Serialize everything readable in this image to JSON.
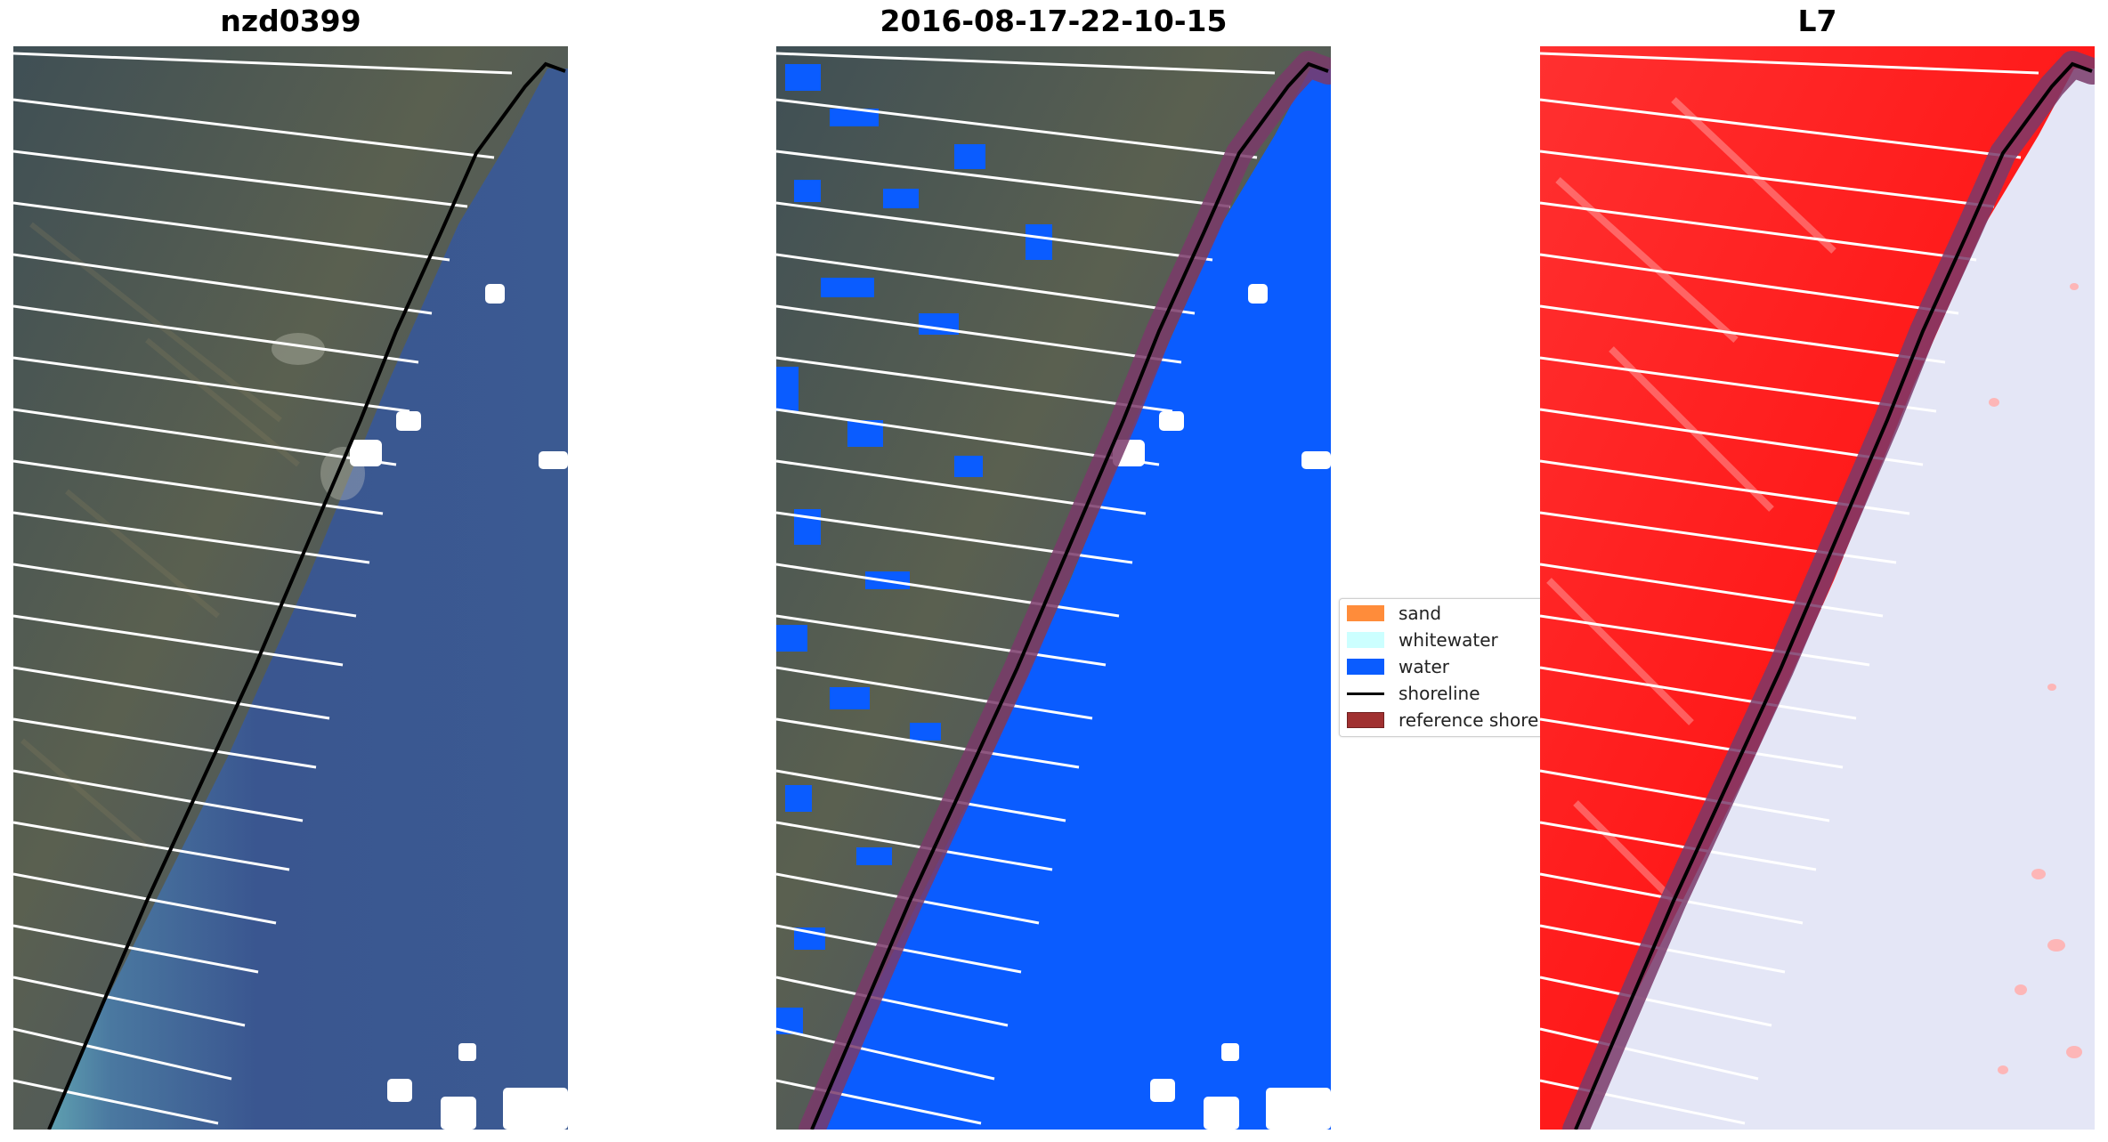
{
  "panels": [
    {
      "title": "nzd0399"
    },
    {
      "title": "2016-08-17-22-10-15"
    },
    {
      "title": "L7"
    }
  ],
  "legend": {
    "items": [
      {
        "label": "sand",
        "color": "#ff8c3a",
        "kind": "patch"
      },
      {
        "label": "whitewater",
        "color": "#ccffff",
        "kind": "patch"
      },
      {
        "label": "water",
        "color": "#0a5cff",
        "kind": "patch"
      },
      {
        "label": "shoreline",
        "color": "#000000",
        "kind": "line"
      },
      {
        "label": "reference shoreline",
        "color": "#a03030",
        "kind": "patch"
      }
    ]
  },
  "colors": {
    "land_rgb": "#4a5a5a",
    "sea_rgb": "#3a5690",
    "water_class": "#0a5cff",
    "index_land": "#ff2020",
    "index_water": "#e4e6f6",
    "reference_band": "#7a3a6a"
  }
}
